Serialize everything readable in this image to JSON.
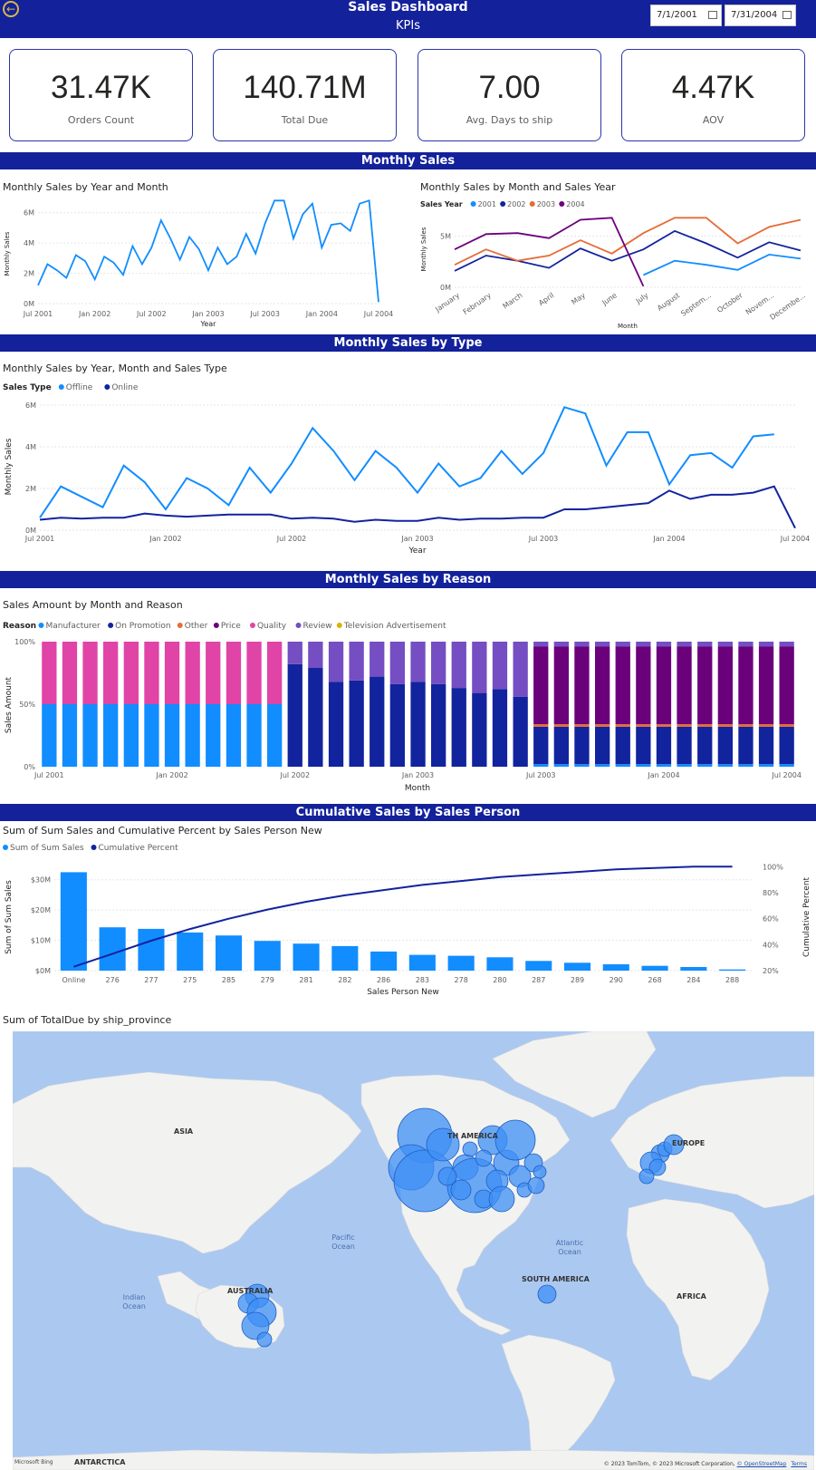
{
  "header": {
    "title": "Sales Dashboard",
    "subtitle": "KPIs",
    "start_date": "7/1/2001",
    "end_date": "7/31/2004",
    "accent_color": "#13219b"
  },
  "kpis": [
    {
      "value": "31.47K",
      "label": "Orders Count"
    },
    {
      "value": "140.71M",
      "label": "Total Due"
    },
    {
      "value": "7.00",
      "label": "Avg. Days to ship"
    },
    {
      "value": "4.47K",
      "label": "AOV"
    }
  ],
  "sections": {
    "monthly_sales": "Monthly Sales",
    "by_type": "Monthly Sales by Type",
    "by_reason": "Monthly Sales by Reason",
    "cumulative": "Cumulative Sales by Sales Person"
  },
  "chart_data": [
    {
      "id": "sales_year_month",
      "type": "line",
      "title": "Monthly Sales by Year and Month",
      "xlabel": "Year",
      "ylabel": "Monthly Sales",
      "ylim": [
        0,
        7000000
      ],
      "yticks": [
        "0M",
        "2M",
        "4M",
        "6M"
      ],
      "xticks": [
        "Jul 2001",
        "Jan 2002",
        "Jul 2002",
        "Jan 2003",
        "Jul 2003",
        "Jan 2004",
        "Jul 2004"
      ],
      "color": "#118dff",
      "series": [
        {
          "values": [
            1.2,
            2.6,
            2.2,
            1.7,
            3.2,
            2.8,
            1.6,
            3.1,
            2.7,
            1.9,
            3.8,
            2.6,
            3.7,
            5.5,
            4.3,
            2.9,
            4.4,
            3.6,
            2.2,
            3.7,
            2.6,
            3.1,
            4.6,
            3.3,
            5.3,
            6.8,
            6.8,
            4.3,
            5.9,
            6.6,
            3.7,
            5.2,
            5.3,
            4.8,
            6.6,
            6.8,
            0.1
          ]
        }
      ]
    },
    {
      "id": "sales_month_salesyear",
      "type": "line",
      "title": "Monthly Sales by Month and Sales Year",
      "legend_title": "Sales Year",
      "xlabel": "Month",
      "ylabel": "Monthly Sales",
      "ylim": [
        0,
        7000000
      ],
      "yticks": [
        "0M",
        "5M"
      ],
      "categories": [
        "January",
        "February",
        "March",
        "April",
        "May",
        "June",
        "July",
        "August",
        "Septem...",
        "October",
        "Novem...",
        "Decembe..."
      ],
      "series": [
        {
          "name": "2001",
          "color": "#118dff",
          "values": [
            null,
            null,
            null,
            null,
            null,
            null,
            1.2,
            2.6,
            2.2,
            1.7,
            3.2,
            2.8
          ]
        },
        {
          "name": "2002",
          "color": "#12239e",
          "values": [
            1.6,
            3.1,
            2.6,
            1.9,
            3.8,
            2.6,
            3.7,
            5.5,
            4.3,
            2.9,
            4.4,
            3.6
          ]
        },
        {
          "name": "2003",
          "color": "#e66c37",
          "values": [
            2.2,
            3.7,
            2.6,
            3.1,
            4.6,
            3.3,
            5.3,
            6.8,
            6.8,
            4.3,
            5.9,
            6.6
          ]
        },
        {
          "name": "2004",
          "color": "#6b007b",
          "values": [
            3.7,
            5.2,
            5.3,
            4.8,
            6.6,
            6.8,
            0.1,
            null,
            null,
            null,
            null,
            null
          ]
        }
      ]
    },
    {
      "id": "sales_by_type",
      "type": "line",
      "title": "Monthly Sales by Year, Month and Sales Type",
      "legend_title": "Sales Type",
      "xlabel": "Year",
      "ylabel": "Monthly Sales",
      "ylim": [
        0,
        6000000
      ],
      "yticks": [
        "0M",
        "2M",
        "4M",
        "6M"
      ],
      "xticks": [
        "Jul 2001",
        "Jan 2002",
        "Jul 2002",
        "Jan 2003",
        "Jul 2003",
        "Jan 2004",
        "Jul 2004"
      ],
      "series": [
        {
          "name": "Offline",
          "color": "#118dff",
          "values": [
            0.6,
            2.1,
            1.6,
            1.1,
            3.1,
            2.3,
            1.0,
            2.5,
            2.0,
            1.2,
            3.0,
            1.8,
            3.2,
            4.9,
            3.8,
            2.4,
            3.8,
            3.0,
            1.8,
            3.2,
            2.1,
            2.5,
            3.8,
            2.7,
            3.7,
            5.9,
            5.6,
            3.1,
            4.7,
            4.7,
            2.2,
            3.6,
            3.7,
            3.0,
            4.5,
            4.6,
            null
          ]
        },
        {
          "name": "Online",
          "color": "#12239e",
          "values": [
            0.5,
            0.6,
            0.55,
            0.6,
            0.6,
            0.8,
            0.7,
            0.65,
            0.7,
            0.75,
            0.75,
            0.75,
            0.55,
            0.6,
            0.55,
            0.4,
            0.5,
            0.45,
            0.45,
            0.6,
            0.5,
            0.55,
            0.55,
            0.6,
            0.6,
            1.0,
            1.0,
            1.1,
            1.2,
            1.3,
            1.9,
            1.5,
            1.7,
            1.7,
            1.8,
            2.1,
            0.1
          ]
        }
      ]
    },
    {
      "id": "sales_by_reason",
      "type": "bar",
      "stacked": "100%",
      "title": "Sales Amount by Month and Reason",
      "legend_title": "Reason",
      "xlabel": "Month",
      "ylabel": "Sales Amount",
      "yticks": [
        "0%",
        "50%",
        "100%"
      ],
      "xticks": [
        "Jul 2001",
        "Jan 2002",
        "Jul 2002",
        "Jan 2003",
        "Jul 2003",
        "Jan 2004",
        "Jul 2004"
      ],
      "legend": [
        {
          "name": "Manufacturer",
          "color": "#118dff"
        },
        {
          "name": "On Promotion",
          "color": "#12239e"
        },
        {
          "name": "Other",
          "color": "#e66c37"
        },
        {
          "name": "Price",
          "color": "#6b007b"
        },
        {
          "name": "Quality",
          "color": "#e044a7"
        },
        {
          "name": "Review",
          "color": "#744ec2"
        },
        {
          "name": "Television  Advertisement",
          "color": "#d9b300"
        }
      ],
      "bar_groups": [
        {
          "count": 12,
          "segments": [
            [
              "Manufacturer",
              0.5
            ],
            [
              "Quality",
              0.5
            ]
          ]
        },
        {
          "count": 12,
          "segments": [
            [
              "On Promotion",
              0.8
            ],
            [
              "Review",
              0.2
            ]
          ],
          "promotion_values": [
            0.82,
            0.79,
            0.68,
            0.69,
            0.72,
            0.66,
            0.68,
            0.66,
            0.63,
            0.59,
            0.62,
            0.56
          ]
        },
        {
          "count": 13,
          "segments": [
            [
              "Manufacturer",
              0.02
            ],
            [
              "On Promotion",
              0.3
            ],
            [
              "Other",
              0.02
            ],
            [
              "Price",
              0.62
            ],
            [
              "Review",
              0.04
            ]
          ]
        }
      ]
    },
    {
      "id": "cumulative_sales_person",
      "type": "bar",
      "title": "Sum of Sum Sales and Cumulative Percent by Sales Person New",
      "xlabel": "Sales Person New",
      "ylabel": "Sum of Sum Sales",
      "y2label": "Cumulative Percent",
      "ylim": [
        0,
        35000000
      ],
      "yticks": [
        "$0M",
        "$10M",
        "$20M",
        "$30M"
      ],
      "y2ticks": [
        "20%",
        "40%",
        "60%",
        "80%",
        "100%"
      ],
      "legend": [
        {
          "name": "Sum of Sum Sales",
          "color": "#118dff"
        },
        {
          "name": "Cumulative Percent",
          "color": "#12239e"
        }
      ],
      "categories": [
        "Online",
        "276",
        "277",
        "275",
        "285",
        "279",
        "281",
        "282",
        "286",
        "283",
        "278",
        "280",
        "287",
        "289",
        "290",
        "268",
        "284",
        "288"
      ],
      "values": [
        32.5,
        14.3,
        13.8,
        12.6,
        11.6,
        9.8,
        8.9,
        8.1,
        6.3,
        5.2,
        4.9,
        4.4,
        3.2,
        2.6,
        2.1,
        1.6,
        1.2,
        0.4
      ],
      "cumulative_percent": [
        23,
        33,
        43,
        52,
        60,
        67,
        73,
        78,
        82,
        86,
        89,
        92,
        94,
        96,
        98,
        99,
        100,
        100
      ]
    }
  ],
  "map": {
    "title": "Sum of TotalDue by ship_province",
    "labels": {
      "asia": "ASIA",
      "north_america": "TH AMERICA",
      "europe": "EUROPE",
      "africa": "AFRICA",
      "south_america": "SOUTH AMERICA",
      "australia": "AUSTRALIA",
      "antarctica": "ANTARCTICA",
      "pacific": "Pacific\nOcean",
      "atlantic": "Atlantic\nOcean",
      "indian": "Indian\nOcean"
    },
    "bing": "Microsoft Bing",
    "copyright": "© 2023 TomTom, © 2023 Microsoft Corporation,",
    "osm": "© OpenStreetMap",
    "terms": "Terms",
    "water_color": "#abc8f0",
    "land_color": "#f2f2f0",
    "bubble_color": "#3d8ff6"
  }
}
